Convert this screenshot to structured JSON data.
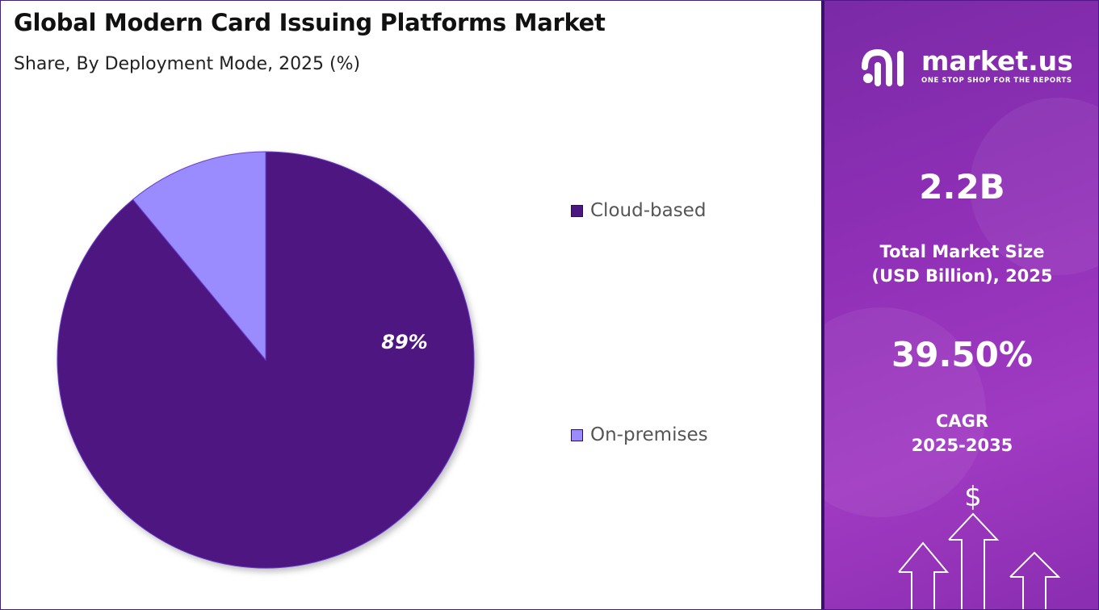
{
  "header": {
    "title": "Global Modern Card Issuing Platforms Market",
    "subtitle": "Share, By Deployment Mode, 2025 (%)"
  },
  "chart_data": {
    "type": "pie",
    "title": "Global Modern Card Issuing Platforms Market",
    "subtitle": "Share, By Deployment Mode, 2025 (%)",
    "categories": [
      "Cloud-based",
      "On-premises"
    ],
    "values": [
      89,
      11
    ],
    "colors": [
      "#4d1580",
      "#9a8cff"
    ],
    "data_labels": [
      "89%",
      ""
    ],
    "legend_position": "right"
  },
  "brand": {
    "name": "market.us",
    "tagline": "ONE STOP SHOP FOR THE REPORTS"
  },
  "stats": {
    "market_size_value": "2.2B",
    "market_size_label_line1": "Total Market Size",
    "market_size_label_line2": "(USD Billion), 2025",
    "cagr_value": "39.50%",
    "cagr_label_line1": "CAGR",
    "cagr_label_line2": "2025-2035"
  },
  "icons": {
    "dollar": "$"
  }
}
